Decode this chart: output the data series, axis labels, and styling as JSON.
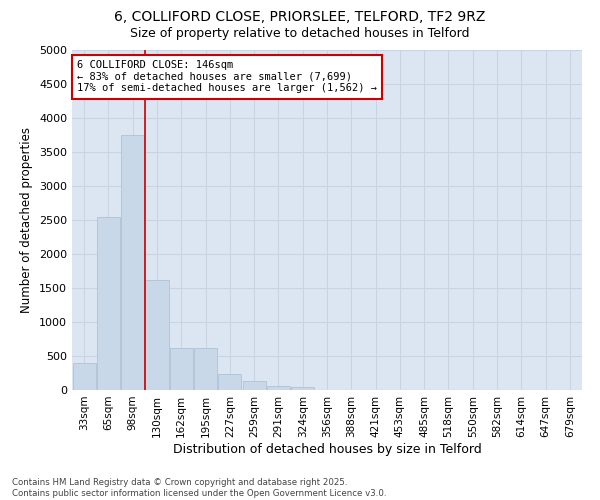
{
  "title_line1": "6, COLLIFORD CLOSE, PRIORSLEE, TELFORD, TF2 9RZ",
  "title_line2": "Size of property relative to detached houses in Telford",
  "categories": [
    "33sqm",
    "65sqm",
    "98sqm",
    "130sqm",
    "162sqm",
    "195sqm",
    "227sqm",
    "259sqm",
    "291sqm",
    "324sqm",
    "356sqm",
    "388sqm",
    "421sqm",
    "453sqm",
    "485sqm",
    "518sqm",
    "550sqm",
    "582sqm",
    "614sqm",
    "647sqm",
    "679sqm"
  ],
  "values": [
    390,
    2550,
    3750,
    1620,
    620,
    620,
    230,
    130,
    60,
    40,
    0,
    0,
    0,
    0,
    0,
    0,
    0,
    0,
    0,
    0,
    0
  ],
  "bar_color": "#c8d8e8",
  "bar_edge_color": "#a8bdd0",
  "xlabel": "Distribution of detached houses by size in Telford",
  "ylabel": "Number of detached properties",
  "ylim": [
    0,
    5000
  ],
  "yticks": [
    0,
    500,
    1000,
    1500,
    2000,
    2500,
    3000,
    3500,
    4000,
    4500,
    5000
  ],
  "grid_color": "#c8d4e4",
  "background_color": "#dce6f2",
  "annotation_line1": "6 COLLIFORD CLOSE: 146sqm",
  "annotation_line2": "← 83% of detached houses are smaller (7,699)",
  "annotation_line3": "17% of semi-detached houses are larger (1,562) →",
  "vline_color": "#cc0000",
  "vline_bar_index": 3,
  "box_edge_color": "#cc0000",
  "footnote": "Contains HM Land Registry data © Crown copyright and database right 2025.\nContains public sector information licensed under the Open Government Licence v3.0."
}
